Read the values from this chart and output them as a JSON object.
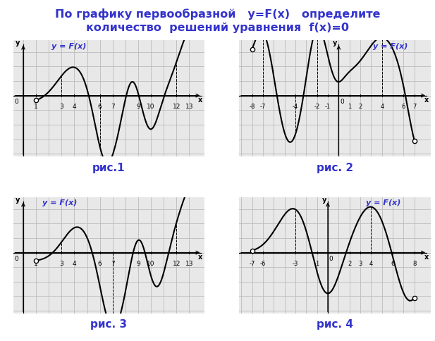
{
  "title_line1": "По графику первообразной   y=F(x)   определите",
  "title_line2": "количество  решений уравнения  f(x)=0",
  "title_fontsize": 11.5,
  "bg_color": "#e8e8e8",
  "fig_bg": "#ffffff",
  "curve_color": "#000000",
  "label_color": "#3333cc",
  "grid_color": "#bbbbbb",
  "axis_color": "#000000",
  "subplot_titles": [
    "y = F(x)",
    "y = F(x)",
    "y = F(x)",
    "y = F(x)"
  ],
  "captions": [
    "рис.1",
    "рис. 2",
    "рис. 3",
    "рис. 4"
  ],
  "caption_fontsize": 11
}
